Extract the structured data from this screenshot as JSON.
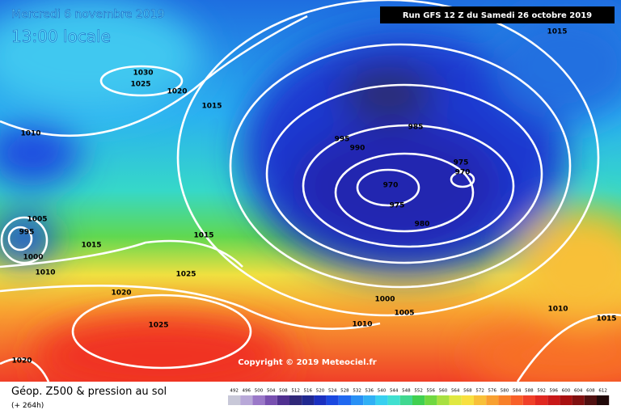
{
  "header": {
    "date": "Mercredi 6 novembre 2019",
    "time": "13:00 locale",
    "run": "Run GFS 12 Z du Samedi 26 octobre 2019"
  },
  "copyright": "Copyright © 2019 Meteociel.fr",
  "footer": {
    "title": "Géop. Z500 & pression au sol",
    "lead": "(+ 264h)"
  },
  "isobar_labels": [
    "1030",
    "1025",
    "1020",
    "1015",
    "1010",
    "995",
    "990",
    "985",
    "975",
    "970",
    "970",
    "975",
    "980",
    "1005",
    "995",
    "1000",
    "1015",
    "1015",
    "1010",
    "1025",
    "1020",
    "1000",
    "1005",
    "1010",
    "1025",
    "1020",
    "1010",
    "1015",
    "1015"
  ],
  "scale": {
    "values": [
      492,
      496,
      500,
      504,
      508,
      512,
      516,
      520,
      524,
      528,
      532,
      536,
      540,
      544,
      548,
      552,
      556,
      560,
      564,
      568,
      572,
      576,
      580,
      584,
      588,
      592,
      596,
      600,
      604,
      608,
      612
    ],
    "colors": [
      "#c8c8d8",
      "#b8a8d8",
      "#9a78c8",
      "#7850b0",
      "#503090",
      "#302878",
      "#202890",
      "#1a30c0",
      "#1a48e0",
      "#1f68f0",
      "#2890f5",
      "#30b0f5",
      "#38d0f0",
      "#40e0d0",
      "#40d890",
      "#40d050",
      "#70d840",
      "#a8e040",
      "#e0e840",
      "#f8e040",
      "#f8c038",
      "#f8a030",
      "#f88028",
      "#f86028",
      "#f04028",
      "#e02820",
      "#c81818",
      "#a81010",
      "#801010",
      "#501010",
      "#200808"
    ]
  }
}
